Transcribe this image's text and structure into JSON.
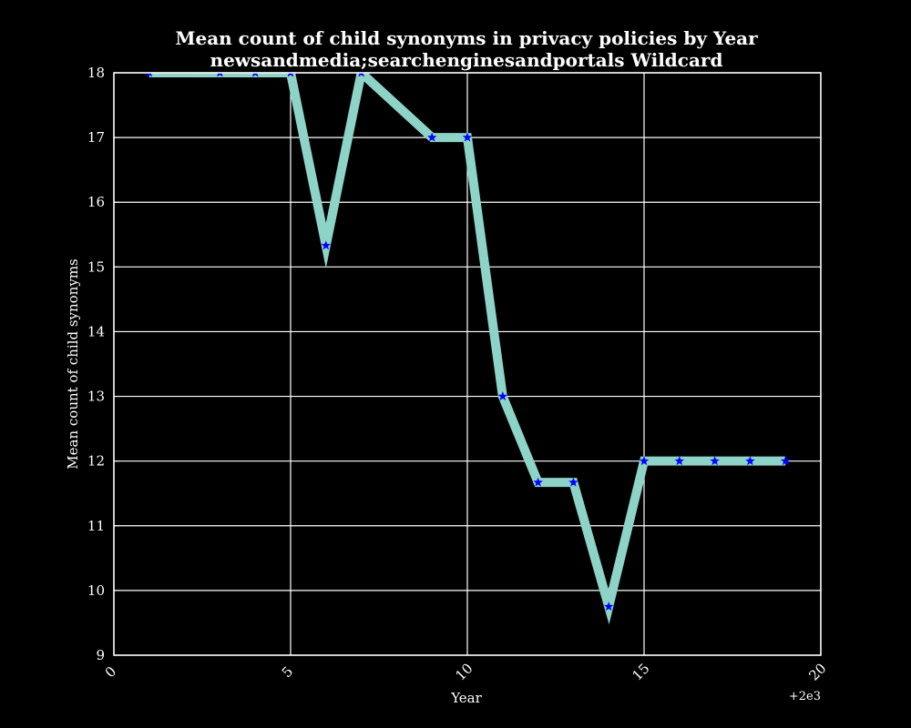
{
  "chart_data": {
    "type": "line",
    "title": "Mean count of child synonyms in privacy policies by Year",
    "subtitle": "newsandmedia;searchenginesandportals Wildcard",
    "xlabel": "Year",
    "ylabel": "Mean count of child synonyms",
    "x_offset_label": "+2e3",
    "xlim": [
      0,
      20
    ],
    "ylim": [
      9,
      18
    ],
    "x_ticks": [
      0,
      5,
      10,
      15,
      20
    ],
    "x_tick_labels": [
      "0",
      "5",
      "10",
      "15",
      "20"
    ],
    "y_ticks": [
      9,
      10,
      11,
      12,
      13,
      14,
      15,
      16,
      17,
      18
    ],
    "y_tick_labels": [
      "9",
      "10",
      "11",
      "12",
      "13",
      "14",
      "15",
      "16",
      "17",
      "18"
    ],
    "grid": true,
    "x": [
      1,
      3,
      4,
      5,
      6,
      7,
      9,
      10,
      11,
      12,
      13,
      14,
      15,
      16,
      17,
      18,
      19
    ],
    "series": [
      {
        "values": [
          18,
          18,
          18,
          18,
          15.33,
          18,
          17,
          17,
          13,
          11.67,
          11.67,
          9.75,
          12,
          12,
          12,
          12,
          12
        ],
        "line_color": "#8dd3c7",
        "marker_color": "#0000ff",
        "marker": "star"
      }
    ]
  }
}
